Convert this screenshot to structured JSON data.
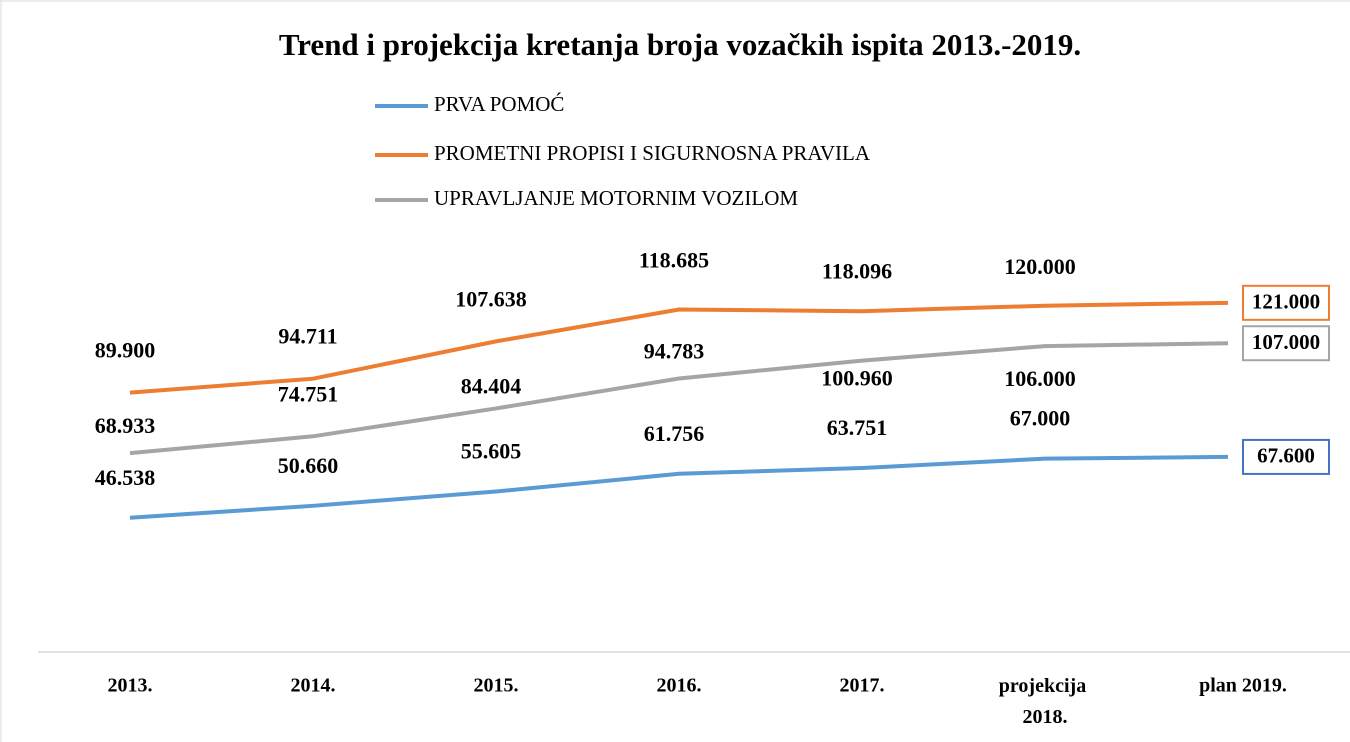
{
  "chart_data": {
    "type": "line",
    "title": "Trend i projekcija kretanja broja vozačkih ispita 2013.-2019.",
    "categories": [
      "2013.",
      "2014.",
      "2015.",
      "2016.",
      "2017.",
      "projekcija 2018.",
      "plan 2019."
    ],
    "series": [
      {
        "name": "PRVA POMOĆ",
        "color": "#5b9bd5",
        "values": [
          46538,
          50660,
          55605,
          61756,
          63751,
          67000,
          67600
        ],
        "value_labels": [
          "46.538",
          "50.660",
          "55.605",
          "61.756",
          "63.751",
          "67.000",
          "67.600"
        ],
        "box_color": "#4472c4"
      },
      {
        "name": "PROMETNI PROPISI I SIGURNOSNA PRAVILA",
        "color": "#ed7d31",
        "values": [
          89900,
          94711,
          107638,
          118685,
          118096,
          120000,
          121000
        ],
        "value_labels": [
          "89.900",
          "94.711",
          "107.638",
          "118.685",
          "118.096",
          "120.000",
          "121.000"
        ],
        "box_color": "#ed7d31"
      },
      {
        "name": "UPRAVLJANJE MOTORNIM VOZILOM",
        "color": "#a5a5a5",
        "values": [
          68933,
          74751,
          84404,
          94783,
          100960,
          106000,
          107000
        ],
        "value_labels": [
          "68.933",
          "74.751",
          "84.404",
          "94.783",
          "100.960",
          "106.000",
          "107.000"
        ],
        "box_color": "#a5a5a5"
      }
    ],
    "ylim": [
      0,
      140000
    ],
    "grid": false,
    "legend": "top"
  }
}
